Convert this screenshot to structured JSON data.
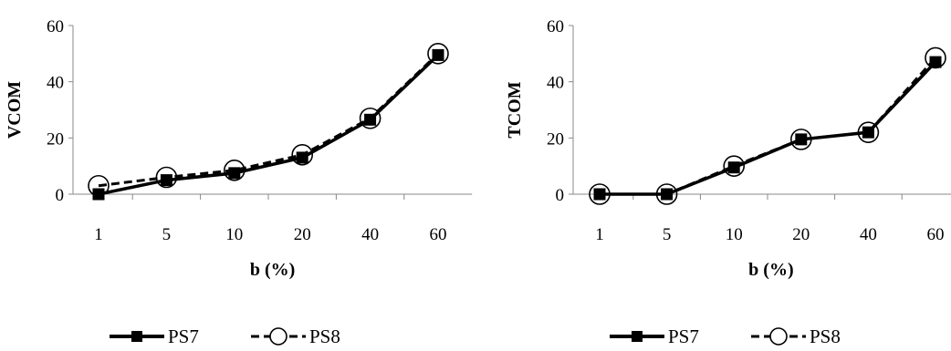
{
  "chart_data": [
    {
      "type": "line",
      "title": "",
      "xlabel": "b (%)",
      "ylabel": "VCOM",
      "categories": [
        "1",
        "5",
        "10",
        "20",
        "40",
        "60"
      ],
      "ylim": [
        0,
        60
      ],
      "yticks": [
        "0",
        "20",
        "40",
        "60"
      ],
      "grid": false,
      "legend": "bottom",
      "series": [
        {
          "name": "PS7",
          "values": [
            0,
            5,
            7.5,
            13,
            26.5,
            49.5
          ],
          "color": "#000000",
          "line": "solid",
          "marker": "filled-square"
        },
        {
          "name": "PS8",
          "values": [
            3,
            6,
            8.5,
            14,
            27,
            50
          ],
          "color": "#000000",
          "line": "dashed",
          "marker": "open-circle"
        }
      ]
    },
    {
      "type": "line",
      "title": "",
      "xlabel": "b (%)",
      "ylabel": "TCOM",
      "categories": [
        "1",
        "5",
        "10",
        "20",
        "40",
        "60"
      ],
      "ylim": [
        0,
        60
      ],
      "yticks": [
        "0",
        "20",
        "40",
        "60"
      ],
      "grid": false,
      "legend": "bottom",
      "series": [
        {
          "name": "PS7",
          "values": [
            0,
            0,
            9.5,
            19.5,
            22,
            47
          ],
          "color": "#000000",
          "line": "solid",
          "marker": "filled-square"
        },
        {
          "name": "PS8",
          "values": [
            0,
            0,
            10,
            19.5,
            22,
            48.5
          ],
          "color": "#000000",
          "line": "dashed",
          "marker": "open-circle"
        }
      ]
    }
  ]
}
